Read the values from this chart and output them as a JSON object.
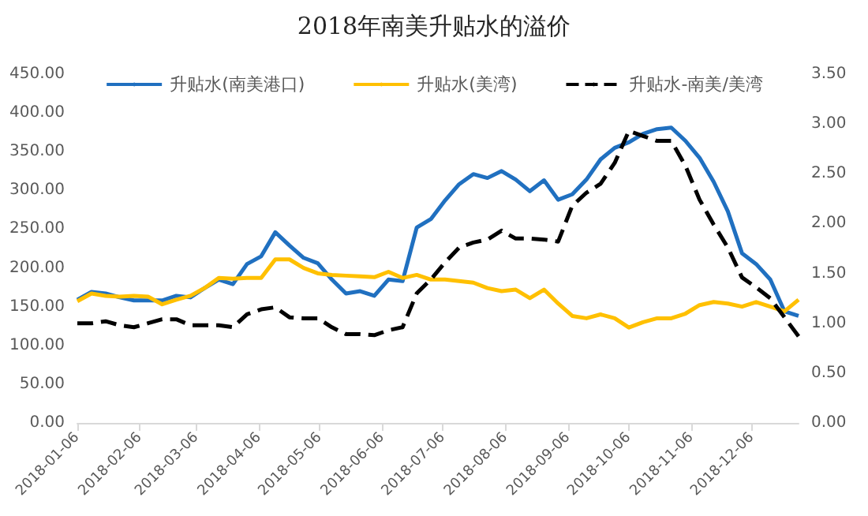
{
  "chart_data": {
    "type": "line",
    "title": "2018年南美升贴水的溢价",
    "x": [
      "2018-01-06",
      "2018-01-13",
      "2018-01-20",
      "2018-01-27",
      "2018-02-03",
      "2018-02-10",
      "2018-02-17",
      "2018-02-24",
      "2018-03-03",
      "2018-03-10",
      "2018-03-17",
      "2018-03-24",
      "2018-03-31",
      "2018-04-07",
      "2018-04-14",
      "2018-04-21",
      "2018-04-28",
      "2018-05-05",
      "2018-05-12",
      "2018-05-19",
      "2018-05-26",
      "2018-06-02",
      "2018-06-09",
      "2018-06-16",
      "2018-06-23",
      "2018-06-30",
      "2018-07-07",
      "2018-07-14",
      "2018-07-21",
      "2018-07-28",
      "2018-08-04",
      "2018-08-11",
      "2018-08-18",
      "2018-08-25",
      "2018-09-01",
      "2018-09-08",
      "2018-09-15",
      "2018-09-22",
      "2018-09-29",
      "2018-10-06",
      "2018-10-13",
      "2018-10-20",
      "2018-10-27",
      "2018-11-03",
      "2018-11-10",
      "2018-11-17",
      "2018-11-24",
      "2018-12-01",
      "2018-12-08",
      "2018-12-15",
      "2018-12-22",
      "2018-12-29"
    ],
    "series": [
      {
        "name": "升贴水(南美港口)",
        "color": "#2070c0",
        "values": [
          159,
          169,
          167,
          162,
          158,
          158,
          158,
          164,
          162,
          174,
          185,
          179,
          205,
          215,
          246,
          229,
          213,
          206,
          185,
          167,
          170,
          164,
          185,
          183,
          252,
          263,
          287,
          308,
          321,
          316,
          325,
          314,
          299,
          313,
          288,
          295,
          314,
          340,
          355,
          362,
          373,
          379,
          381,
          364,
          342,
          311,
          273,
          219,
          205,
          185,
          144,
          138
        ]
      },
      {
        "name": "升贴水(美湾)",
        "color": "#ffc000",
        "values": [
          157,
          167,
          164,
          163,
          164,
          163,
          153,
          159,
          164,
          174,
          187,
          186,
          187,
          187,
          211,
          211,
          200,
          193,
          191,
          190,
          189,
          188,
          195,
          187,
          191,
          185,
          185,
          183,
          181,
          174,
          170,
          172,
          161,
          172,
          154,
          138,
          135,
          140,
          135,
          123,
          130,
          135,
          135,
          141,
          152,
          156,
          154,
          150,
          156,
          150,
          144,
          159
        ]
      },
      {
        "name": "升贴水-南美/美湾",
        "color": "#000000",
        "axis": "y2",
        "line_style": "dashed",
        "values": [
          1.0,
          1.0,
          1.02,
          0.98,
          0.96,
          1.0,
          1.04,
          1.04,
          0.98,
          0.98,
          0.98,
          0.96,
          1.09,
          1.14,
          1.16,
          1.06,
          1.05,
          1.05,
          0.96,
          0.89,
          0.89,
          0.88,
          0.93,
          0.96,
          1.3,
          1.44,
          1.61,
          1.76,
          1.81,
          1.84,
          1.93,
          1.85,
          1.85,
          1.84,
          1.82,
          2.18,
          2.31,
          2.4,
          2.61,
          2.93,
          2.88,
          2.83,
          2.83,
          2.58,
          2.24,
          1.99,
          1.76,
          1.46,
          1.36,
          1.25,
          1.06,
          0.87
        ]
      }
    ],
    "xlim": [
      "2018-01-06",
      "2018-12-29"
    ],
    "xticks": [
      "2018-01-06",
      "2018-02-06",
      "2018-03-06",
      "2018-04-06",
      "2018-05-06",
      "2018-06-06",
      "2018-07-06",
      "2018-08-06",
      "2018-09-06",
      "2018-10-06",
      "2018-11-06",
      "2018-12-06"
    ],
    "ylim": [
      0,
      450
    ],
    "yticks": [
      {
        "value": 0,
        "label": "0.00"
      },
      {
        "value": 50,
        "label": "50.00"
      },
      {
        "value": 100,
        "label": "100.00"
      },
      {
        "value": 150,
        "label": "150.00"
      },
      {
        "value": 200,
        "label": "200.00"
      },
      {
        "value": 250,
        "label": "250.00"
      },
      {
        "value": 300,
        "label": "300.00"
      },
      {
        "value": 350,
        "label": "350.00"
      },
      {
        "value": 400,
        "label": "400.00"
      },
      {
        "value": 450,
        "label": "450.00"
      }
    ],
    "y2lim": [
      0,
      3.5
    ],
    "y2ticks": [
      {
        "value": 0,
        "label": "0.00"
      },
      {
        "value": 0.5,
        "label": "0.50"
      },
      {
        "value": 1,
        "label": "1.00"
      },
      {
        "value": 1.5,
        "label": "1.50"
      },
      {
        "value": 2,
        "label": "2.00"
      },
      {
        "value": 2.5,
        "label": "2.50"
      },
      {
        "value": 3,
        "label": "3.00"
      },
      {
        "value": 3.5,
        "label": "3.50"
      }
    ],
    "grid": false,
    "legend": "top",
    "marker": "none",
    "line_style": "solid"
  }
}
